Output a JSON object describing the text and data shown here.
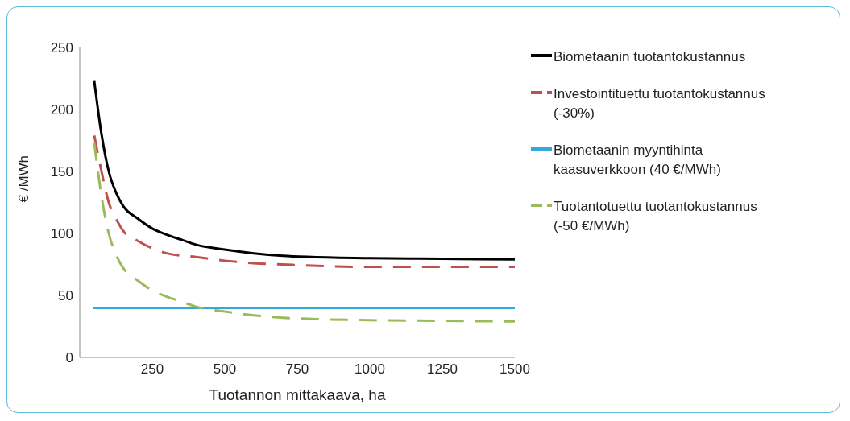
{
  "chart_data": {
    "type": "line",
    "xlabel": "Tuotannon mittakaava, ha",
    "ylabel": "€ /MWh",
    "xlim": [
      0,
      1500
    ],
    "xticks": [
      250,
      500,
      750,
      1000,
      1250,
      1500
    ],
    "ylim": [
      0,
      250
    ],
    "yticks": [
      0,
      50,
      100,
      150,
      200,
      250
    ],
    "grid": false,
    "legend": "right",
    "marker": "none",
    "series": [
      {
        "name": "Biometaanin tuotantokustannus",
        "color": "#000000",
        "line_style": "solid",
        "x": [
          50,
          75,
          100,
          125,
          150,
          200,
          250,
          300,
          350,
          400,
          500,
          600,
          700,
          800,
          1000,
          1250,
          1500
        ],
        "values": [
          223,
          180,
          150,
          133,
          122,
          112,
          104,
          99,
          95,
          91,
          87,
          84,
          82,
          81,
          80,
          79.5,
          79
        ]
      },
      {
        "name": "Investointituettu tuotantokustannus (-30%)",
        "color": "#c0504d",
        "line_style": "dashed",
        "x": [
          50,
          75,
          100,
          125,
          150,
          200,
          250,
          300,
          400,
          500,
          600,
          700,
          800,
          1000,
          1250,
          1500
        ],
        "values": [
          179,
          150,
          125,
          112,
          102,
          94,
          88,
          84,
          81,
          78,
          76,
          75,
          74,
          73,
          73,
          73
        ]
      },
      {
        "name": "Biometaanin myyntihinta kaasuverkkoon (40 €/MWh)",
        "color": "#31a9dd",
        "line_style": "solid",
        "x": [
          45,
          1500
        ],
        "values": [
          40,
          40
        ]
      },
      {
        "name": "Tuotantotuettu tuotantokustannus (-50 €/MWh)",
        "color": "#9bbb59",
        "line_style": "dashed",
        "x": [
          50,
          75,
          100,
          125,
          150,
          200,
          250,
          300,
          350,
          400,
          500,
          600,
          700,
          800,
          1000,
          1250,
          1500
        ],
        "values": [
          173,
          130,
          100,
          83,
          72,
          62,
          54,
          49,
          45,
          41,
          37,
          34,
          32,
          31,
          30,
          29.5,
          29
        ]
      }
    ]
  }
}
